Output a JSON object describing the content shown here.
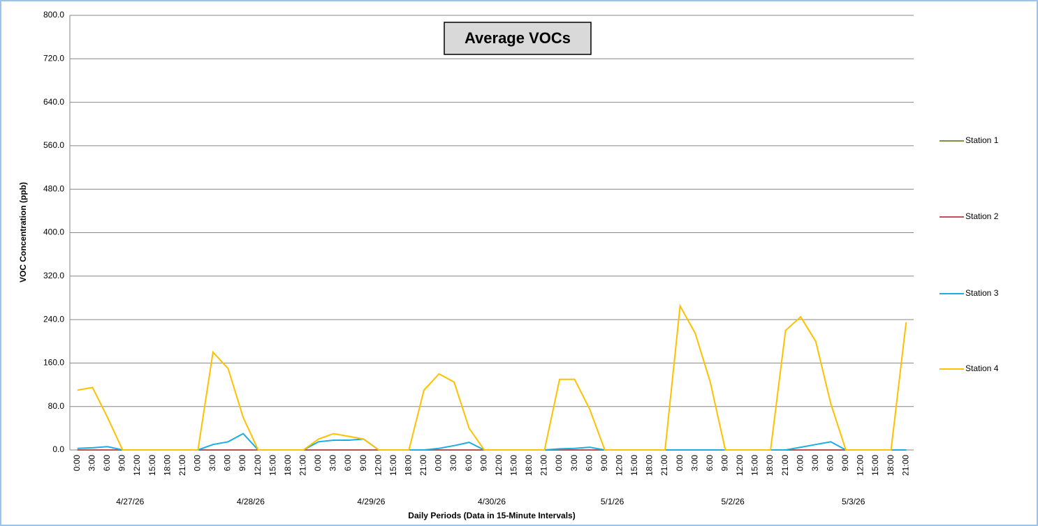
{
  "chart_data": {
    "type": "line",
    "title": "Average VOCs",
    "y_label": "VOC Concentration (ppb)",
    "x_label": "Daily Periods (Data in 15-Minute Intervals)",
    "categories": [
      "0:00",
      "3:00",
      "6:00",
      "9:00",
      "12:00",
      "15:00",
      "18:00",
      "21:00",
      "0:00",
      "3:00",
      "6:00",
      "9:00",
      "12:00",
      "15:00",
      "18:00",
      "21:00",
      "0:00",
      "3:00",
      "6:00",
      "9:00",
      "12:00",
      "15:00",
      "18:00",
      "21:00",
      "0:00",
      "3:00",
      "6:00",
      "9:00",
      "12:00",
      "15:00",
      "18:00",
      "21:00",
      "0:00",
      "3:00",
      "6:00",
      "9:00",
      "12:00",
      "15:00",
      "18:00",
      "21:00",
      "0:00",
      "3:00",
      "6:00",
      "9:00",
      "12:00",
      "15:00",
      "18:00",
      "21:00",
      "0:00",
      "3:00",
      "6:00",
      "9:00",
      "12:00",
      "15:00",
      "18:00",
      "21:00"
    ],
    "dates": [
      "4/27/26",
      "4/28/26",
      "4/29/26",
      "4/30/26",
      "5/1/26",
      "5/2/26",
      "5/3/26"
    ],
    "ylim": [
      0,
      800
    ],
    "yticks": [
      {
        "value": 0,
        "label": "0.0"
      },
      {
        "value": 80,
        "label": "80.0"
      },
      {
        "value": 160,
        "label": "160.0"
      },
      {
        "value": 240,
        "label": "240.0"
      },
      {
        "value": 320,
        "label": "320.0"
      },
      {
        "value": 400,
        "label": "400.0"
      },
      {
        "value": 480,
        "label": "480.0"
      },
      {
        "value": 560,
        "label": "560.0"
      },
      {
        "value": 640,
        "label": "640.0"
      },
      {
        "value": 720,
        "label": "720.0"
      },
      {
        "value": 800,
        "label": "800.0"
      }
    ],
    "grid": true,
    "legend": "right",
    "series": [
      {
        "name": "Station 1",
        "color": "#77933c",
        "values": [
          0,
          0,
          0,
          0,
          0,
          0,
          0,
          0,
          0,
          0,
          0,
          0,
          0,
          0,
          0,
          0,
          0,
          0,
          0,
          0,
          0,
          0,
          0,
          0,
          0,
          0,
          0,
          0,
          0,
          0,
          0,
          0,
          0,
          0,
          0,
          0,
          0,
          0,
          0,
          0,
          0,
          0,
          0,
          0,
          0,
          0,
          0,
          0,
          0,
          0,
          0,
          0,
          0,
          0,
          0,
          0
        ]
      },
      {
        "name": "Station 2",
        "color": "#c0504d",
        "values": [
          0,
          0,
          0,
          0,
          0,
          0,
          0,
          0,
          0,
          0,
          0,
          0,
          0,
          0,
          0,
          0,
          0,
          0,
          0,
          0,
          0,
          0,
          0,
          0,
          0,
          0,
          0,
          0,
          0,
          0,
          0,
          0,
          0,
          0,
          0,
          0,
          0,
          0,
          0,
          0,
          0,
          0,
          0,
          0,
          0,
          0,
          0,
          0,
          0,
          0,
          0,
          0,
          0,
          0,
          0,
          0
        ]
      },
      {
        "name": "Station 3",
        "color": "#1cade4",
        "values": [
          3,
          4,
          6,
          0,
          0,
          0,
          0,
          0,
          0,
          10,
          15,
          30,
          0,
          0,
          0,
          0,
          15,
          18,
          18,
          20,
          0,
          0,
          0,
          0,
          3,
          8,
          14,
          0,
          0,
          0,
          0,
          0,
          2,
          3,
          5,
          0,
          0,
          0,
          0,
          0,
          0,
          0,
          0,
          0,
          0,
          0,
          0,
          0,
          5,
          10,
          15,
          0,
          0,
          0,
          0,
          0
        ]
      },
      {
        "name": "Station 4",
        "color": "#ffc000",
        "values": [
          110,
          115,
          60,
          0,
          0,
          0,
          0,
          0,
          0,
          180,
          150,
          60,
          0,
          0,
          0,
          0,
          20,
          30,
          25,
          20,
          0,
          0,
          0,
          110,
          140,
          125,
          40,
          0,
          0,
          0,
          0,
          0,
          130,
          130,
          75,
          0,
          0,
          0,
          0,
          0,
          265,
          215,
          125,
          0,
          0,
          0,
          0,
          220,
          245,
          200,
          85,
          0,
          0,
          0,
          0,
          235
        ]
      }
    ]
  }
}
